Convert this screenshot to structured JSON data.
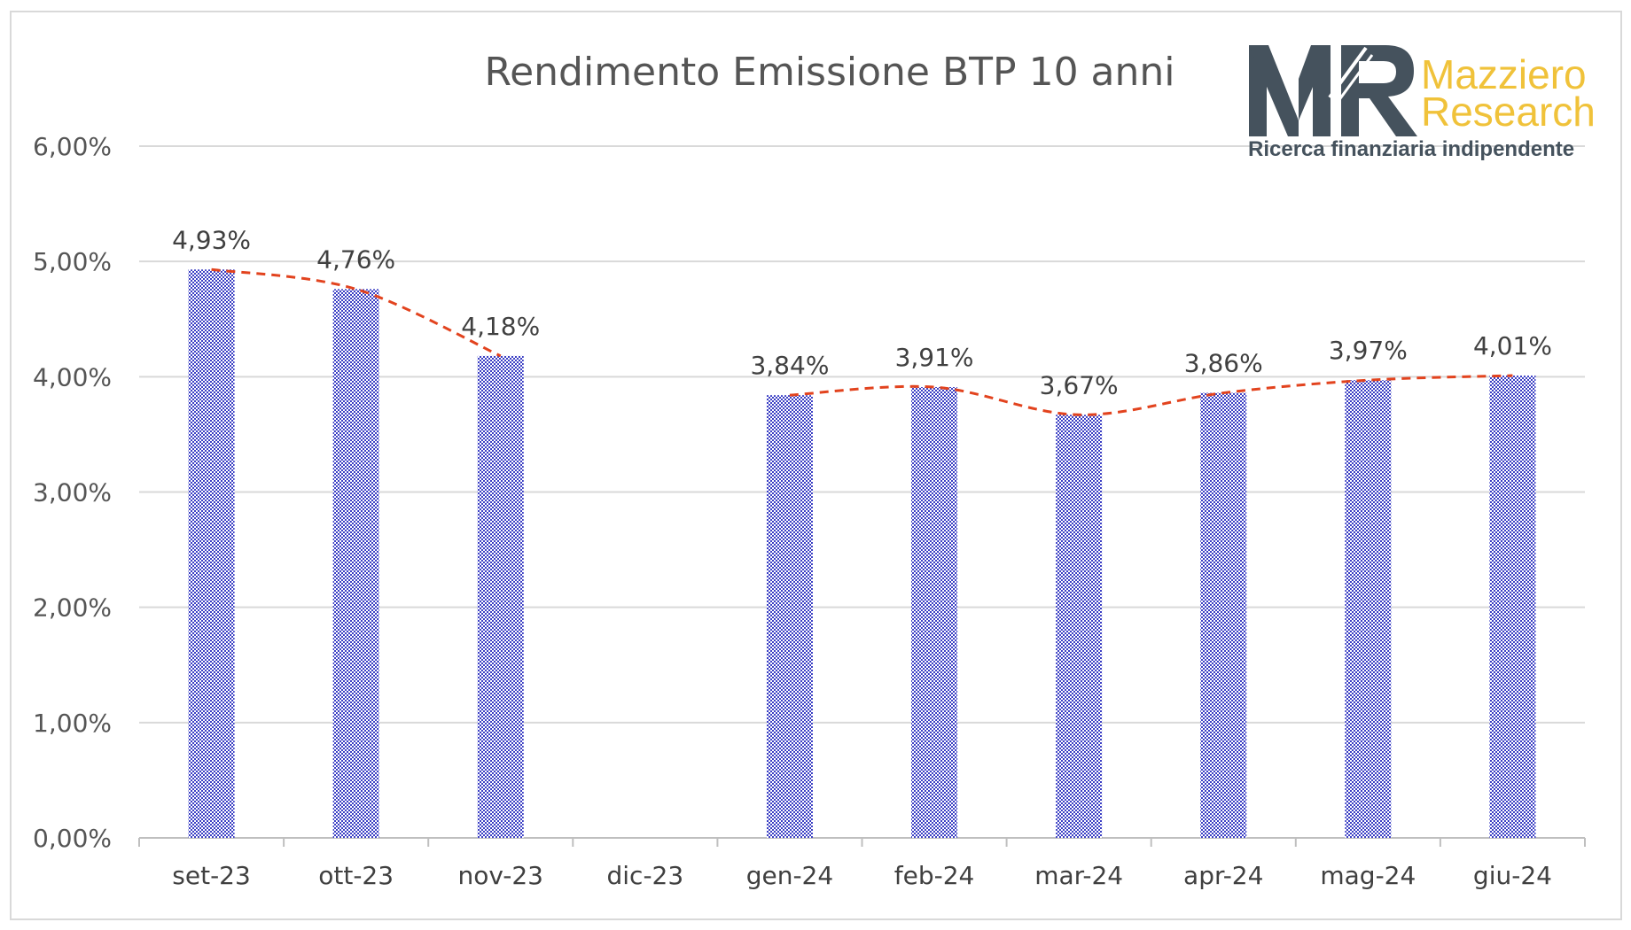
{
  "chart_data": {
    "type": "bar",
    "title": "Rendimento Emissione BTP 10 anni",
    "categories": [
      "set-23",
      "ott-23",
      "nov-23",
      "dic-23",
      "gen-24",
      "feb-24",
      "mar-24",
      "apr-24",
      "mag-24",
      "giu-24"
    ],
    "values": [
      4.93,
      4.76,
      4.18,
      null,
      3.84,
      3.91,
      3.67,
      3.86,
      3.97,
      4.01
    ],
    "value_labels": [
      "4,93%",
      "4,76%",
      "4,18%",
      "",
      "3,84%",
      "3,91%",
      "3,67%",
      "3,86%",
      "3,97%",
      "4,01%"
    ],
    "y_ticks": [
      0,
      1,
      2,
      3,
      4,
      5,
      6
    ],
    "y_tick_labels": [
      "0,00%",
      "1,00%",
      "2,00%",
      "3,00%",
      "4,00%",
      "5,00%",
      "6,00%"
    ],
    "ylim": [
      0,
      6
    ],
    "grid": true,
    "legend": "none",
    "trendline": "dashed smooth line through bar tops",
    "colors": {
      "bar": "#3b3fc4",
      "trendline": "#e2431e",
      "grid": "#d9d9d9",
      "title": "#555555"
    }
  },
  "logo": {
    "monogram": "MR",
    "name_line1": "Mazziero",
    "name_line2": "Research",
    "tagline": "Ricerca finanziaria indipendente",
    "colors": {
      "monogram": "#45525d",
      "name": "#f0c23a",
      "tagline": "#45525d"
    }
  }
}
